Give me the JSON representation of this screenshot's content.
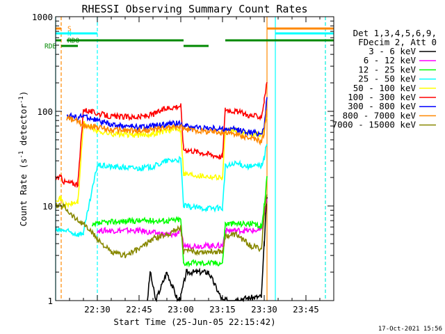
{
  "chart_data": {
    "type": "line",
    "title": "RHESSI Observing Summary Count Rates",
    "xlabel": "Start Time (25-Jun-05 22:15:42)",
    "ylabel_main": "Count Rate (s",
    "ylabel_sup1": "-1",
    "ylabel_mid": " detector",
    "ylabel_sup2": "-1",
    "ylabel_end": ")",
    "yscale": "log",
    "ylim": [
      1,
      1000
    ],
    "xlim_minutes_since_2215": [
      0,
      100
    ],
    "x_ticks": [
      {
        "label": "22:30",
        "minute": 15
      },
      {
        "label": "22:45",
        "minute": 30
      },
      {
        "label": "23:00",
        "minute": 45
      },
      {
        "label": "23:15",
        "minute": 60
      },
      {
        "label": "23:30",
        "minute": 75
      },
      {
        "label": "23:45",
        "minute": 90
      }
    ],
    "y_ticks": [
      {
        "label": "1",
        "value": 1
      },
      {
        "label": "10",
        "value": 10
      },
      {
        "label": "100",
        "value": 100
      },
      {
        "label": "1000",
        "value": 1000
      }
    ],
    "legend_header": [
      "Det 1,3,4,5,6,9,",
      "FDecim 2, Att 0"
    ],
    "legend_placement": "top-right outside",
    "series": [
      {
        "name": "3 - 6 keV",
        "color": "#000000",
        "x": [
          0,
          15,
          30,
          33,
          34,
          36,
          40,
          44,
          45,
          47,
          55,
          60,
          74,
          75,
          76
        ],
        "y": [
          null,
          null,
          null,
          1.0,
          2.0,
          1.0,
          2.0,
          1.0,
          1.1,
          2.0,
          2.0,
          1.0,
          1.1,
          4,
          13
        ]
      },
      {
        "name": "6 - 12 keV",
        "color": "#ff00ff",
        "x": [
          10,
          14,
          15,
          20,
          30,
          35,
          40,
          43,
          45,
          46,
          55,
          60,
          61,
          70,
          74,
          75,
          76
        ],
        "y": [
          null,
          null,
          5.5,
          5.5,
          5.5,
          5.2,
          5.0,
          5.0,
          5.5,
          3.8,
          3.8,
          3.8,
          5.5,
          5.5,
          5.5,
          8,
          12
        ]
      },
      {
        "name": "12 - 25 keV",
        "color": "#00ff00",
        "x": [
          13,
          15,
          20,
          30,
          35,
          40,
          45,
          46,
          52,
          60,
          61,
          70,
          74,
          75,
          76
        ],
        "y": [
          6.0,
          6.5,
          6.8,
          7.0,
          7.0,
          7.0,
          7.2,
          2.5,
          2.5,
          2.5,
          6.5,
          6.5,
          6.0,
          10,
          20
        ]
      },
      {
        "name": "25 - 50 keV",
        "color": "#00ffff",
        "x": [
          0,
          2,
          3,
          8,
          10,
          15,
          20,
          30,
          35,
          40,
          45,
          46,
          52,
          60,
          61,
          65,
          70,
          74,
          75,
          76
        ],
        "y": [
          5.5,
          5.5,
          5.5,
          5.0,
          5.2,
          27,
          26,
          25,
          26,
          30,
          31,
          10,
          9.5,
          9.5,
          26,
          28,
          26,
          27,
          32,
          48
        ]
      },
      {
        "name": "50 - 100 keV",
        "color": "#ffff00",
        "x": [
          0,
          2,
          3,
          8,
          10,
          15,
          20,
          30,
          35,
          40,
          45,
          46,
          52,
          60,
          61,
          65,
          70,
          74,
          75,
          76
        ],
        "y": [
          12,
          12,
          10,
          11,
          75,
          62,
          58,
          56,
          58,
          63,
          65,
          22,
          21,
          20,
          62,
          63,
          58,
          57,
          65,
          90
        ]
      },
      {
        "name": "100 - 300 keV",
        "color": "#ff0000",
        "x": [
          0,
          2,
          3,
          8,
          10,
          15,
          20,
          30,
          35,
          40,
          45,
          46,
          52,
          60,
          61,
          65,
          70,
          74,
          75,
          76
        ],
        "y": [
          20,
          20,
          18,
          17,
          105,
          95,
          88,
          87,
          93,
          108,
          115,
          40,
          37,
          33,
          105,
          100,
          90,
          88,
          130,
          210
        ]
      },
      {
        "name": "300 - 800 keV",
        "color": "#0000ff",
        "x": [
          4,
          8,
          10,
          15,
          20,
          30,
          35,
          40,
          45,
          46,
          52,
          60,
          61,
          65,
          70,
          74,
          75,
          76
        ],
        "y": [
          92,
          85,
          90,
          80,
          72,
          68,
          70,
          73,
          75,
          70,
          67,
          65,
          65,
          64,
          60,
          58,
          70,
          140
        ]
      },
      {
        "name": "800 - 7000 keV",
        "color": "#ff8800",
        "x": [
          4,
          8,
          10,
          15,
          20,
          30,
          35,
          40,
          45,
          46,
          52,
          60,
          61,
          65,
          70,
          74,
          75,
          76
        ],
        "y": [
          85,
          78,
          72,
          68,
          64,
          62,
          64,
          67,
          69,
          65,
          62,
          60,
          60,
          57,
          52,
          48,
          60,
          110
        ]
      },
      {
        "name": "7000 - 15000 keV",
        "color": "#888800",
        "x": [
          0,
          3,
          5,
          8,
          10,
          15,
          20,
          25,
          30,
          35,
          40,
          45,
          46,
          52,
          60,
          61,
          65,
          70,
          74,
          75,
          76
        ],
        "y": [
          10,
          10,
          8.5,
          7.0,
          6.5,
          4.5,
          3.2,
          3.0,
          3.5,
          4.5,
          5.0,
          6.0,
          3.3,
          3.3,
          3.3,
          4.8,
          5.0,
          3.8,
          3.5,
          8,
          14
        ]
      }
    ],
    "state_bars": [
      {
        "label": "S",
        "color": "#ff8800",
        "segments": [
          [
            0,
            2
          ],
          [
            76,
            100
          ]
        ]
      },
      {
        "label": "N",
        "color": "#00ffff",
        "segments": [
          [
            0,
            15
          ],
          [
            79,
            100
          ]
        ]
      },
      {
        "label": "RDO",
        "color": "#008800",
        "segments": [
          [
            0,
            2
          ],
          [
            4,
            46
          ],
          [
            61,
            100
          ]
        ]
      },
      {
        "label": "RDB",
        "color": "#008800",
        "segments": [
          [
            2,
            8
          ],
          [
            46,
            55
          ]
        ]
      }
    ],
    "vertical_markers": [
      {
        "minute": 0,
        "color": "#00ffff",
        "style": "solid"
      },
      {
        "minute": 2,
        "color": "#ff8800",
        "style": "dashed"
      },
      {
        "minute": 15,
        "color": "#00ffff",
        "style": "dashed"
      },
      {
        "minute": 76,
        "color": "#ff8800",
        "style": "solid"
      },
      {
        "minute": 79,
        "color": "#00ffff",
        "style": "solid"
      },
      {
        "minute": 97,
        "color": "#ff8800",
        "style": "dashed"
      },
      {
        "minute": 97,
        "color": "#00ffff",
        "style": "dashed"
      }
    ]
  },
  "footer_date": "17-Oct-2021 15:56"
}
